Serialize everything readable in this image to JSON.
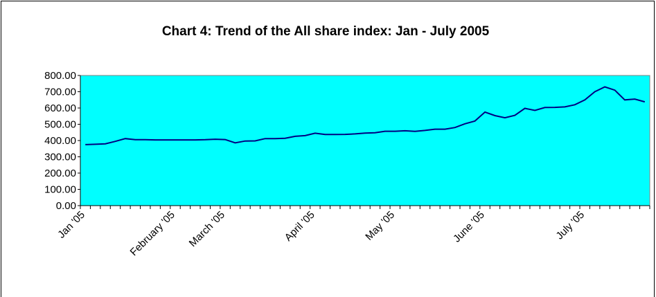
{
  "chart_data": {
    "type": "line",
    "title": "Chart 4: Trend of the All share index: Jan - July 2005",
    "categories": [
      "Jan '05",
      null,
      null,
      null,
      null,
      null,
      null,
      null,
      null,
      "February '05",
      null,
      null,
      null,
      null,
      "March '05",
      null,
      null,
      null,
      null,
      null,
      null,
      null,
      null,
      "April '05",
      null,
      null,
      null,
      null,
      null,
      null,
      null,
      "May '05",
      null,
      null,
      null,
      null,
      null,
      null,
      null,
      null,
      "June '05",
      null,
      null,
      null,
      null,
      null,
      null,
      null,
      null,
      null,
      "July '05",
      null,
      null,
      null,
      null,
      null,
      null
    ],
    "series": [
      {
        "name": "All share index",
        "color": "#000080",
        "values": [
          375,
          377,
          380,
          395,
          412,
          405,
          405,
          404,
          404,
          404,
          404,
          404,
          405,
          408,
          406,
          386,
          397,
          398,
          412,
          412,
          414,
          426,
          430,
          445,
          437,
          437,
          438,
          441,
          446,
          448,
          457,
          457,
          460,
          456,
          462,
          470,
          470,
          480,
          503,
          520,
          575,
          553,
          540,
          555,
          598,
          585,
          603,
          604,
          607,
          620,
          650,
          700,
          730,
          710,
          650,
          655,
          638
        ]
      }
    ],
    "ylim": [
      0,
      800
    ],
    "yticks": [
      {
        "value": 0,
        "label": "0.00"
      },
      {
        "value": 100,
        "label": "100.00"
      },
      {
        "value": 200,
        "label": "200.00"
      },
      {
        "value": 300,
        "label": "300.00"
      },
      {
        "value": 400,
        "label": "400.00"
      },
      {
        "value": 500,
        "label": "500.00"
      },
      {
        "value": 600,
        "label": "600.00"
      },
      {
        "value": 700,
        "label": "700.00"
      },
      {
        "value": 800,
        "label": "800.00"
      }
    ],
    "plot_background": "#00ffff"
  }
}
